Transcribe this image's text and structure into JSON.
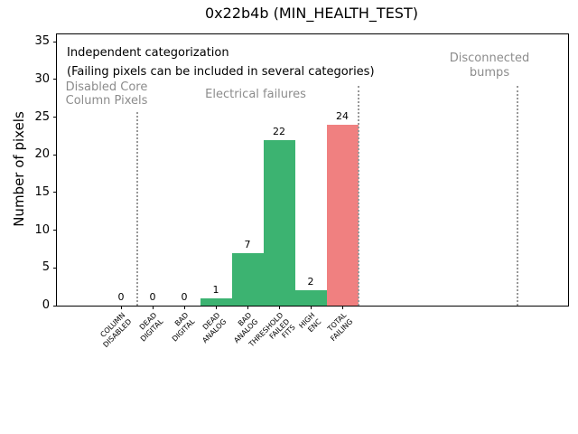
{
  "chart_data": {
    "type": "bar",
    "title": "0x22b4b (MIN_HEALTH_TEST)",
    "ylabel": "Number of pixels",
    "xlabel": "",
    "ylim": [
      0,
      35
    ],
    "yticks": [
      0,
      5,
      10,
      15,
      20,
      25,
      30,
      35
    ],
    "grid": false,
    "legend": null,
    "categories": [
      [
        "COLUMN",
        "DISABLED"
      ],
      [
        "DEAD",
        "DIGITAL"
      ],
      [
        "BAD",
        "DIGITAL"
      ],
      [
        "DEAD",
        "ANALOG"
      ],
      [
        "BAD",
        "ANALOG"
      ],
      [
        "THRESHOLD",
        "FAILED",
        "FITS"
      ],
      [
        "HIGH",
        "ENC"
      ],
      [
        "TOTAL",
        "FAILING"
      ]
    ],
    "values": [
      0,
      0,
      0,
      1,
      7,
      22,
      2,
      24
    ],
    "bar_value_labels": [
      "0",
      "0",
      "0",
      "1",
      "7",
      "22",
      "2",
      "24"
    ],
    "bar_colors": [
      "#3cb371",
      "#3cb371",
      "#3cb371",
      "#3cb371",
      "#3cb371",
      "#3cb371",
      "#3cb371",
      "#f08080"
    ],
    "colors": {
      "bar_green": "#3cb371",
      "bar_red": "#f08080",
      "annotation_grey": "#8c8c8c",
      "separator_grey": "#999999",
      "axis_black": "#000000"
    },
    "annotations": {
      "independent": "Independent categorization",
      "failing_note": "(Failing pixels can be included in several categories)",
      "group_disabled": [
        "Disabled Core",
        "Column Pixels"
      ],
      "group_electrical": "Electrical failures",
      "group_disconnected": [
        "Disconnected",
        "bumps"
      ]
    }
  }
}
